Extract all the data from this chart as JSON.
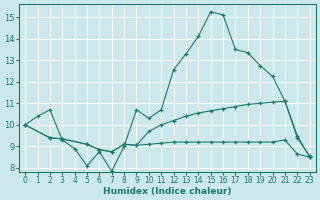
{
  "xlabel": "Humidex (Indice chaleur)",
  "background_color": "#cde8ec",
  "grid_color": "#ffffff",
  "line_color": "#1a7a6e",
  "xlim": [
    -0.5,
    23.5
  ],
  "ylim": [
    7.8,
    15.6
  ],
  "yticks": [
    8,
    9,
    10,
    11,
    12,
    13,
    14,
    15
  ],
  "xticks": [
    0,
    1,
    2,
    3,
    4,
    5,
    6,
    7,
    8,
    9,
    10,
    11,
    12,
    13,
    14,
    15,
    16,
    17,
    18,
    19,
    20,
    21,
    22,
    23
  ],
  "line1_x": [
    0,
    1,
    2,
    3,
    4,
    5,
    6,
    7,
    8,
    9,
    10,
    11,
    12,
    13,
    14,
    15,
    16,
    17,
    18,
    19,
    20,
    21,
    22,
    23
  ],
  "line1_y": [
    10.0,
    10.4,
    10.7,
    9.3,
    8.9,
    8.1,
    8.75,
    7.85,
    9.0,
    10.7,
    10.3,
    10.7,
    12.55,
    13.3,
    14.1,
    15.25,
    15.1,
    13.5,
    13.35,
    12.75,
    12.25,
    11.1,
    9.5,
    8.5
  ],
  "line2_x": [
    0,
    2,
    3,
    5,
    6,
    7,
    8,
    9,
    10,
    11,
    12,
    13,
    14,
    15,
    16,
    17,
    18,
    19,
    20,
    21,
    22,
    23
  ],
  "line2_y": [
    10.0,
    9.4,
    9.35,
    9.1,
    8.85,
    8.75,
    9.1,
    9.05,
    9.7,
    10.0,
    10.2,
    10.4,
    10.55,
    10.65,
    10.75,
    10.85,
    10.95,
    11.0,
    11.05,
    11.1,
    9.4,
    8.55
  ],
  "line3_x": [
    0,
    2,
    3,
    5,
    6,
    7,
    8,
    9,
    10,
    11,
    12,
    13,
    14,
    15,
    16,
    17,
    18,
    19,
    20,
    21,
    22,
    23
  ],
  "line3_y": [
    10.0,
    9.4,
    9.35,
    9.1,
    8.85,
    8.75,
    9.1,
    9.05,
    9.1,
    9.15,
    9.2,
    9.2,
    9.2,
    9.2,
    9.2,
    9.2,
    9.2,
    9.2,
    9.2,
    9.3,
    8.65,
    8.5
  ]
}
